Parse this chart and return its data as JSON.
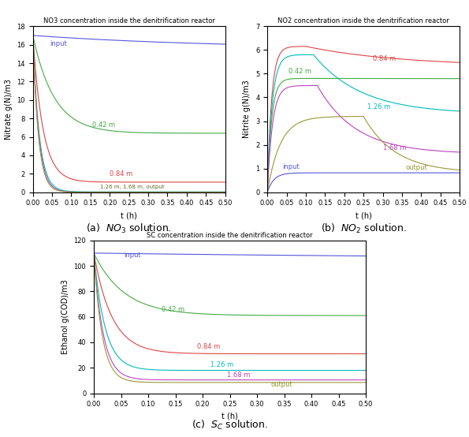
{
  "title_a": "NO3 concentration inside the denitrification reactor",
  "title_b": "NO2 concentration inside the denitrification reactor",
  "title_c": "SC concentration inside the denitrification reactor",
  "caption_a": "(a)  $NO_3$ solution.",
  "caption_b": "(b)  $NO_2$ solution.",
  "caption_c": "(c)  $S_C$ solution.",
  "xlabel": "t (h)",
  "ylabel_a": "Nitrate g(N)/m3",
  "ylabel_b": "Nitrite g(N)/m3",
  "ylabel_c": "Ethanol g(COD)/m3",
  "colors": {
    "input": "#5555dd",
    "0.42 m": "#44aa44",
    "0.84 m": "#dd4444",
    "1.26 m": "#00bbbb",
    "1.68 m": "#bb44bb",
    "output": "#999933"
  },
  "no3_ylim": [
    0,
    18
  ],
  "no3_yticks": [
    0,
    2,
    4,
    6,
    8,
    10,
    12,
    14,
    16,
    18
  ],
  "no2_ylim": [
    0,
    7
  ],
  "no2_yticks": [
    0,
    1,
    2,
    3,
    4,
    5,
    6,
    7
  ],
  "sc_ylim": [
    0,
    120
  ],
  "sc_yticks": [
    0,
    20,
    40,
    60,
    80,
    100,
    120
  ],
  "xticks": [
    0,
    0.05,
    0.1,
    0.15,
    0.2,
    0.25,
    0.3,
    0.35,
    0.4,
    0.45,
    0.5
  ]
}
